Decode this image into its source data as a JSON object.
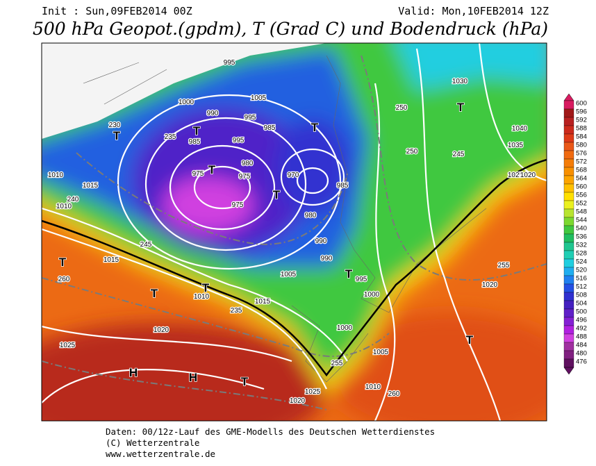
{
  "header": {
    "init": "Init : Sun,09FEB2014 00Z",
    "valid": "Valid: Mon,10FEB2014 12Z",
    "title": "500 hPa Geopot.(gpdm), T (Grad C) und Bodendruck (hPa)"
  },
  "legend": {
    "levels": [
      "600",
      "596",
      "592",
      "588",
      "584",
      "580",
      "576",
      "572",
      "568",
      "564",
      "560",
      "556",
      "552",
      "548",
      "544",
      "540",
      "536",
      "532",
      "528",
      "524",
      "520",
      "516",
      "512",
      "508",
      "504",
      "500",
      "496",
      "492",
      "488",
      "484",
      "480",
      "476"
    ],
    "colors": [
      "#d81b60",
      "#a01818",
      "#b82020",
      "#cc2a1c",
      "#de3a18",
      "#ea5818",
      "#f06a10",
      "#f47c08",
      "#f89000",
      "#fca400",
      "#ffc000",
      "#ffe000",
      "#eaf020",
      "#b8e430",
      "#7cd830",
      "#40c840",
      "#20be60",
      "#20c690",
      "#20ceb4",
      "#20cee0",
      "#20aef0",
      "#2080f0",
      "#2450e4",
      "#3030d0",
      "#4420c0",
      "#6020c8",
      "#8420d4",
      "#b020e0",
      "#d040e0",
      "#a030a0",
      "#802080",
      "#601060"
    ]
  },
  "map_labels": [
    "995",
    "1000",
    "990",
    "985",
    "1005",
    "995",
    "985",
    "995",
    "980",
    "975",
    "970",
    "985",
    "975",
    "980",
    "990",
    "990",
    "975",
    "1010",
    "1015",
    "1010",
    "1015",
    "1020",
    "1025",
    "1030",
    "1035",
    "1040",
    "1010",
    "1015",
    "1020",
    "1025",
    "1000",
    "1005",
    "1010",
    "1025",
    "1020",
    "1020",
    "995",
    "1000",
    "1005",
    "230",
    "235",
    "240",
    "245",
    "250",
    "255",
    "260",
    "235",
    "245",
    "250",
    "255",
    "260",
    "T",
    "T",
    "T",
    "T",
    "T",
    "T",
    "T",
    "T",
    "T",
    "T",
    "T",
    "H",
    "H",
    "T"
  ],
  "footer": {
    "line1": "Daten: 00/12z-Lauf des GME-Modells des Deutschen Wetterdienstes",
    "line2": "(C) Wetterzentrale",
    "line3": "www.wetterzentrale.de"
  }
}
